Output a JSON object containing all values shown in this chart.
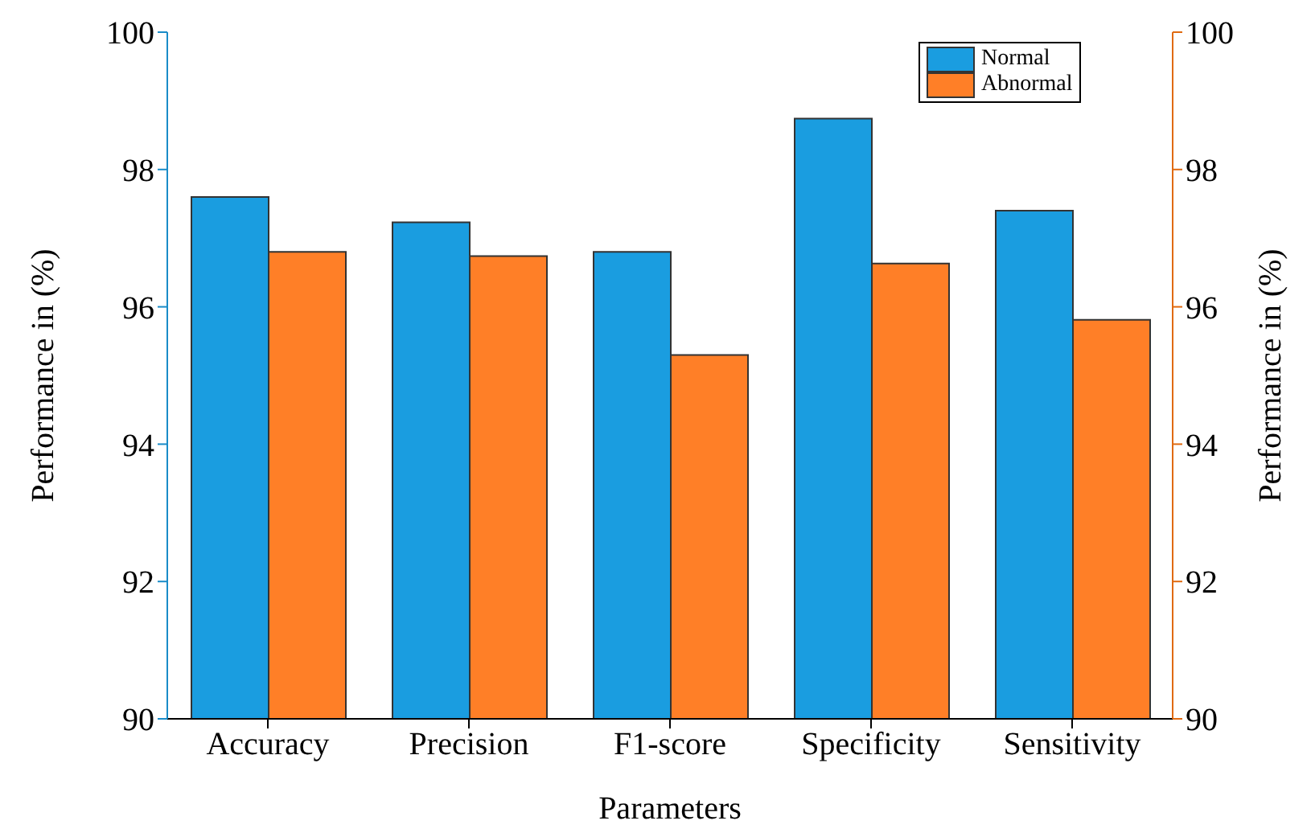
{
  "chart_data": {
    "type": "bar",
    "xlabel": "Parameters",
    "ylabel": "Performance in (%)",
    "y2label": "Performance in (%)",
    "categories": [
      "Accuracy",
      "Precision",
      "F1-score",
      "Specificity",
      "Sensitivity"
    ],
    "series": [
      {
        "name": "Normal",
        "color": "#1a9de0",
        "values": [
          97.6,
          97.23,
          96.8,
          98.74,
          97.4
        ]
      },
      {
        "name": "Abnormal",
        "color": "#ff7f27",
        "values": [
          96.8,
          96.74,
          95.3,
          96.63,
          95.81
        ]
      }
    ],
    "ylim": [
      90,
      100
    ],
    "yticks": [
      90,
      92,
      94,
      96,
      98,
      100
    ],
    "y2lim": [
      90,
      100
    ],
    "y2ticks": [
      90,
      92,
      94,
      96,
      98,
      100
    ],
    "grid": false,
    "legend": "top right"
  }
}
